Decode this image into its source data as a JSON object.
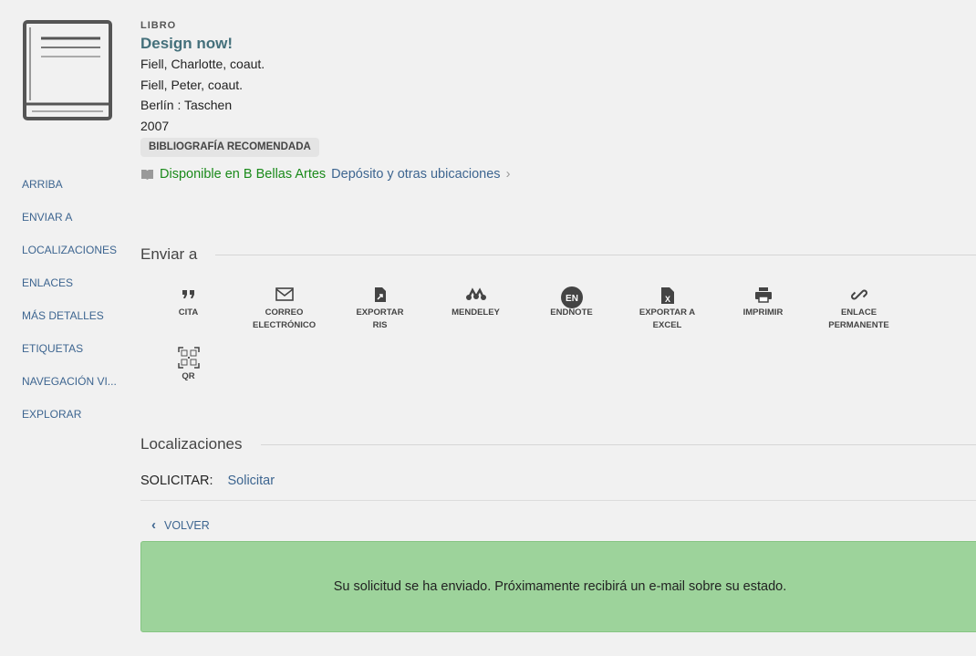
{
  "record": {
    "type": "LIBRO",
    "title": "Design now!",
    "lines": [
      "Fiell, Charlotte, coaut.",
      "Fiell, Peter, coaut.",
      "Berlín : Taschen",
      "2007"
    ],
    "badge": "BIBLIOGRAFÍA RECOMENDADA",
    "availability": "Disponible en",
    "location": "B Bellas Artes",
    "sublocation": "Depósito y otras ubicaciones"
  },
  "sidebar": [
    "ARRIBA",
    "ENVIAR A",
    "LOCALIZACIONES",
    "ENLACES",
    "MÁS DETALLES",
    "ETIQUETAS",
    "NAVEGACIÓN VI...",
    "EXPLORAR"
  ],
  "send_to": {
    "heading": "Enviar a",
    "actions": [
      {
        "label": "CITA",
        "icon": "quote-icon"
      },
      {
        "label": "CORREO ELECTRÓNICO",
        "icon": "mail-icon"
      },
      {
        "label": "EXPORTAR RIS",
        "icon": "file-export-icon"
      },
      {
        "label": "MENDELEY",
        "icon": "mendeley-icon"
      },
      {
        "label": "ENDNOTE",
        "icon": "endnote-icon",
        "icon_text": "EN"
      },
      {
        "label": "EXPORTAR A EXCEL",
        "icon": "excel-file-icon",
        "icon_text": "X"
      },
      {
        "label": "IMPRIMIR",
        "icon": "printer-icon"
      },
      {
        "label": "ENLACE PERMANENTE",
        "icon": "link-icon"
      },
      {
        "label": "QR",
        "icon": "qr-code-icon"
      }
    ]
  },
  "locations": {
    "heading": "Localizaciones",
    "request_label": "SOLICITAR:",
    "request_link": "Solicitar",
    "back": "VOLVER"
  },
  "message": "Su solicitud se ha enviado. Próximamente recibirá un e-mail sobre su estado.",
  "colors": {
    "link": "#3d6590",
    "available": "#1a8a1a",
    "success_bg": "#9dd39b"
  }
}
